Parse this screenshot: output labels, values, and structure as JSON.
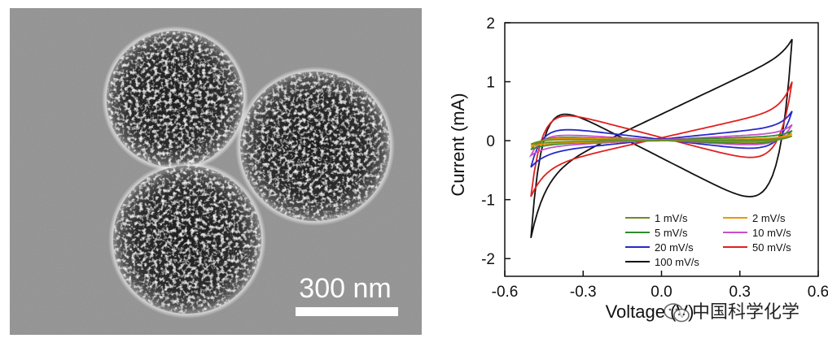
{
  "tem_image": {
    "scale_bar_label": "300 nm"
  },
  "watermark": {
    "text": "中国科学化学"
  },
  "chart_data": {
    "type": "line",
    "xlabel": "Voltage (V)",
    "ylabel": "Current (mA)",
    "xlim": [
      -0.6,
      0.6
    ],
    "ylim": [
      -2.3,
      2.0
    ],
    "xticks": [
      -0.6,
      -0.3,
      0.0,
      0.3,
      0.6
    ],
    "xtick_labels": [
      "-0.6",
      "-0.3",
      "0.0",
      "0.3",
      "0.6"
    ],
    "yticks": [
      -2,
      -1,
      0,
      1,
      2
    ],
    "ytick_labels": [
      "-2",
      "-1",
      "0",
      "1",
      "2"
    ],
    "grid": false,
    "legend_position": "bottom-right",
    "series": [
      {
        "name": "1 mV/s",
        "color": "#6b8e23",
        "scan_rate": 1,
        "vmin": -0.5,
        "vmax": 0.5,
        "i_start": -0.02,
        "i_end": 0.02,
        "i_ox_at_vmax": 0.08,
        "i_red_at_vmin": -0.06
      },
      {
        "name": "2 mV/s",
        "color": "#f29400",
        "scan_rate": 2,
        "vmin": -0.5,
        "vmax": 0.5,
        "i_start": -0.04,
        "i_end": 0.04,
        "i_ox_at_vmax": 0.12,
        "i_red_at_vmin": -0.1
      },
      {
        "name": "5 mV/s",
        "color": "#2e8b2e",
        "scan_rate": 5,
        "vmin": -0.5,
        "vmax": 0.5,
        "i_start": -0.06,
        "i_end": 0.08,
        "i_ox_at_vmax": 0.17,
        "i_red_at_vmin": -0.15
      },
      {
        "name": "10 mV/s",
        "color": "#c850c8",
        "scan_rate": 10,
        "vmin": -0.5,
        "vmax": 0.5,
        "i_start": -0.1,
        "i_end": 0.13,
        "i_ox_at_vmax": 0.27,
        "i_red_at_vmin": -0.25
      },
      {
        "name": "20 mV/s",
        "color": "#2828c8",
        "scan_rate": 20,
        "vmin": -0.5,
        "vmax": 0.5,
        "i_start": -0.2,
        "i_end": 0.25,
        "i_ox_at_vmax": 0.5,
        "i_red_at_vmin": -0.45
      },
      {
        "name": "50 mV/s",
        "color": "#e02020",
        "scan_rate": 50,
        "vmin": -0.5,
        "vmax": 0.5,
        "i_start": -0.45,
        "i_end": 0.55,
        "i_ox_at_vmax": 1.0,
        "i_red_at_vmin": -0.95
      },
      {
        "name": "100 mV/s",
        "color": "#111111",
        "scan_rate": 100,
        "vmin": -0.5,
        "vmax": 0.5,
        "i_start": -0.6,
        "i_end": 1.5,
        "i_ox_at_vmax": 1.72,
        "i_red_at_vmin": -1.65
      }
    ]
  }
}
